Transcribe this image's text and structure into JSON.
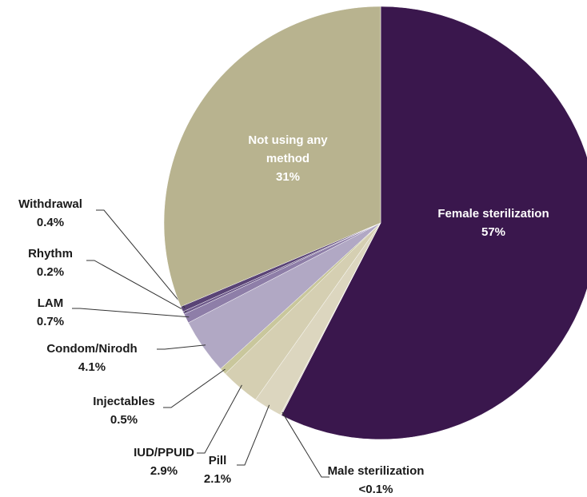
{
  "chart_data": {
    "type": "pie",
    "categories": [
      "Female sterilization",
      "Male sterilization",
      "Pill",
      "IUD/PPUID",
      "Injectables",
      "Condom/Nirodh",
      "LAM",
      "Rhythm",
      "Withdrawal",
      "Not using any method"
    ],
    "values": [
      57,
      0.1,
      2.1,
      2.9,
      0.5,
      4.1,
      0.7,
      0.2,
      0.4,
      31
    ],
    "value_labels": [
      "57%",
      "<0.1%",
      "2.1%",
      "2.9%",
      "0.5%",
      "4.1%",
      "0.7%",
      "0.2%",
      "0.4%",
      "31%"
    ],
    "colors": [
      "#3a174d",
      "#ddd8c6",
      "#dcd6bf",
      "#d5cfb2",
      "#c9c79c",
      "#b1a8c4",
      "#8e7ea8",
      "#6f5b8b",
      "#5a4476",
      "#b8b38f"
    ]
  }
}
